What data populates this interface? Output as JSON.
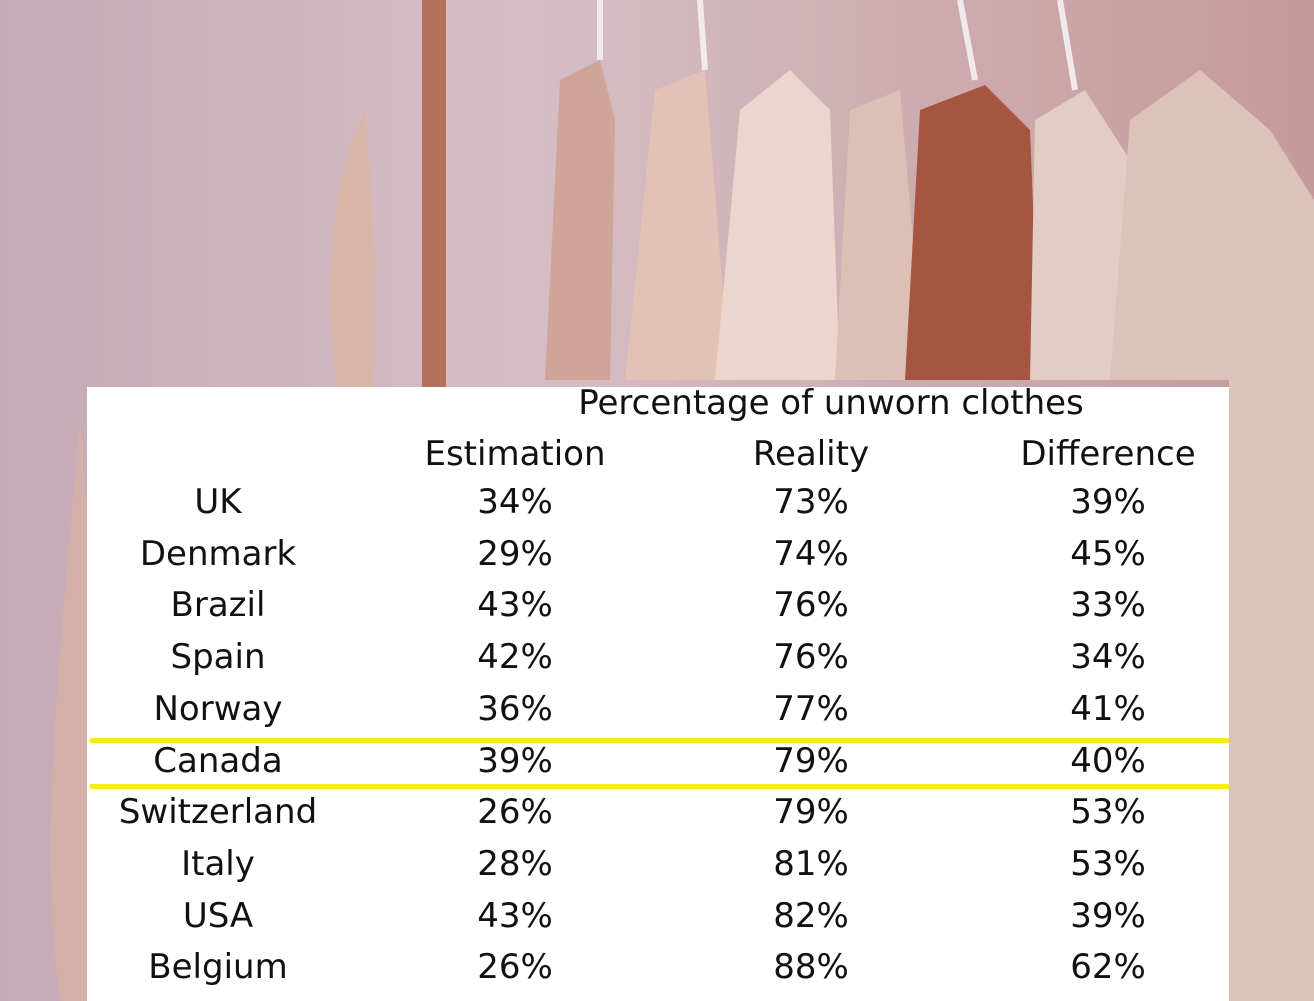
{
  "background": {
    "image_description_icon": "clothes-rack-photo",
    "tint": "#c9aeb8"
  },
  "chart_data": {
    "type": "table",
    "title": "Percentage of unworn clothes",
    "columns": [
      "Estimation",
      "Reality",
      "Difference"
    ],
    "rows": [
      {
        "country": "UK",
        "estimation": "34%",
        "reality": "73%",
        "difference": "39%"
      },
      {
        "country": "Denmark",
        "estimation": "29%",
        "reality": "74%",
        "difference": "45%"
      },
      {
        "country": "Brazil",
        "estimation": "43%",
        "reality": "76%",
        "difference": "33%"
      },
      {
        "country": "Spain",
        "estimation": "42%",
        "reality": "76%",
        "difference": "34%"
      },
      {
        "country": "Norway",
        "estimation": "36%",
        "reality": "77%",
        "difference": "41%"
      },
      {
        "country": "Canada",
        "estimation": "39%",
        "reality": "79%",
        "difference": "40%"
      },
      {
        "country": "Switzerland",
        "estimation": "26%",
        "reality": "79%",
        "difference": "53%"
      },
      {
        "country": "Italy",
        "estimation": "28%",
        "reality": "81%",
        "difference": "53%"
      },
      {
        "country": "USA",
        "estimation": "43%",
        "reality": "82%",
        "difference": "39%"
      },
      {
        "country": "Belgium",
        "estimation": "26%",
        "reality": "88%",
        "difference": "62%"
      }
    ],
    "highlighted_row": "Canada",
    "highlight_color": "#f7ec18"
  }
}
